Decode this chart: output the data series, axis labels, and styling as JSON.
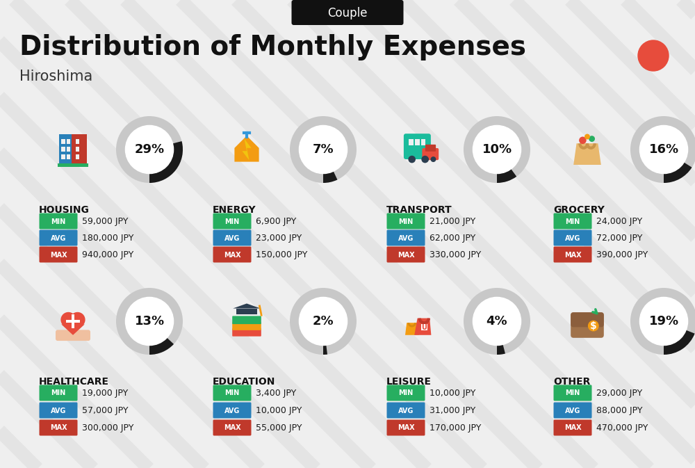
{
  "title": "Distribution of Monthly Expenses",
  "subtitle": "Hiroshima",
  "header_label": "Couple",
  "background_color": "#efefef",
  "categories": [
    {
      "name": "HOUSING",
      "percent": 29,
      "min": "59,000 JPY",
      "avg": "180,000 JPY",
      "max": "940,000 JPY",
      "icon": "housing",
      "row": 0,
      "col": 0
    },
    {
      "name": "ENERGY",
      "percent": 7,
      "min": "6,900 JPY",
      "avg": "23,000 JPY",
      "max": "150,000 JPY",
      "icon": "energy",
      "row": 0,
      "col": 1
    },
    {
      "name": "TRANSPORT",
      "percent": 10,
      "min": "21,000 JPY",
      "avg": "62,000 JPY",
      "max": "330,000 JPY",
      "icon": "transport",
      "row": 0,
      "col": 2
    },
    {
      "name": "GROCERY",
      "percent": 16,
      "min": "24,000 JPY",
      "avg": "72,000 JPY",
      "max": "390,000 JPY",
      "icon": "grocery",
      "row": 0,
      "col": 3
    },
    {
      "name": "HEALTHCARE",
      "percent": 13,
      "min": "19,000 JPY",
      "avg": "57,000 JPY",
      "max": "300,000 JPY",
      "icon": "healthcare",
      "row": 1,
      "col": 0
    },
    {
      "name": "EDUCATION",
      "percent": 2,
      "min": "3,400 JPY",
      "avg": "10,000 JPY",
      "max": "55,000 JPY",
      "icon": "education",
      "row": 1,
      "col": 1
    },
    {
      "name": "LEISURE",
      "percent": 4,
      "min": "10,000 JPY",
      "avg": "31,000 JPY",
      "max": "170,000 JPY",
      "icon": "leisure",
      "row": 1,
      "col": 2
    },
    {
      "name": "OTHER",
      "percent": 19,
      "min": "29,000 JPY",
      "avg": "88,000 JPY",
      "max": "470,000 JPY",
      "icon": "other",
      "row": 1,
      "col": 3
    }
  ],
  "min_color": "#27ae60",
  "avg_color": "#2980b9",
  "max_color": "#c0392b",
  "circle_fill_color": "#1a1a1a",
  "circle_bg_color": "#c8c8c8",
  "red_dot_color": "#e74c3c",
  "category_name_color": "#111111",
  "value_text_color": "#1a1a1a",
  "stripe_color": "#d8d8d8",
  "header_bg": "#111111",
  "header_text": "#ffffff",
  "title_color": "#111111",
  "subtitle_color": "#333333"
}
